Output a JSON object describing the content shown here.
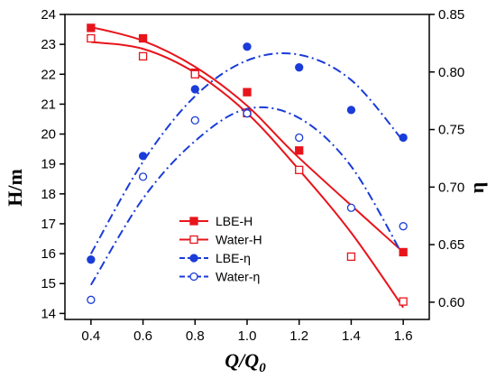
{
  "chart_data": {
    "type": "scatter",
    "xlabel": "Q/Q",
    "xlabel_sub": "0",
    "ylabel_left": "H/m",
    "ylabel_right": "η",
    "xlim": [
      0.3,
      1.7
    ],
    "ylim_left": [
      13.8,
      24.0
    ],
    "ylim_right": [
      0.585,
      0.85
    ],
    "xticks": [
      "0.4",
      "0.6",
      "0.8",
      "1.0",
      "1.2",
      "1.4",
      "1.6"
    ],
    "yticks_left": [
      "14",
      "15",
      "16",
      "17",
      "18",
      "19",
      "20",
      "21",
      "22",
      "23",
      "24"
    ],
    "yticks_right": [
      "0.60",
      "0.65",
      "0.70",
      "0.75",
      "0.80",
      "0.85"
    ],
    "grid": false,
    "legend_position": "bottom-center",
    "series": [
      {
        "name": "LBE-H",
        "axis": "left",
        "color": "#e8141b",
        "marker": "square-filled",
        "line": "solid",
        "x": [
          0.4,
          0.6,
          0.8,
          1.0,
          1.2,
          1.6
        ],
        "y": [
          23.55,
          23.2,
          22.05,
          21.4,
          19.45,
          16.05
        ],
        "fit": [
          23.58,
          23.12,
          22.25,
          20.95,
          19.2,
          16.05
        ]
      },
      {
        "name": "Water-H",
        "axis": "left",
        "color": "#e8141b",
        "marker": "square-open",
        "line": "solid",
        "x": [
          0.4,
          0.6,
          0.8,
          1.0,
          1.2,
          1.4,
          1.6
        ],
        "y": [
          23.2,
          22.6,
          22.0,
          20.7,
          18.8,
          15.9,
          14.4
        ],
        "fit": [
          23.08,
          22.85,
          22.05,
          20.7,
          18.8,
          16.7,
          14.2
        ]
      },
      {
        "name": "LBE-η",
        "axis": "right",
        "color": "#1a3cd8",
        "marker": "circle-filled",
        "line": "dashdot",
        "x": [
          0.4,
          0.6,
          0.8,
          1.0,
          1.2,
          1.4,
          1.6
        ],
        "y": [
          0.637,
          0.727,
          0.785,
          0.822,
          0.804,
          0.767,
          0.743
        ],
        "fit": [
          0.642,
          0.722,
          0.779,
          0.81,
          0.815,
          0.793,
          0.74
        ]
      },
      {
        "name": "Water-η",
        "axis": "right",
        "color": "#1a3cd8",
        "marker": "circle-open",
        "line": "dashdot",
        "x": [
          0.4,
          0.6,
          0.8,
          1.0,
          1.2,
          1.4,
          1.6
        ],
        "y": [
          0.602,
          0.709,
          0.758,
          0.764,
          0.743,
          0.682,
          0.666
        ],
        "fit": [
          0.615,
          0.69,
          0.74,
          0.768,
          0.76,
          0.718,
          0.64
        ]
      }
    ]
  }
}
